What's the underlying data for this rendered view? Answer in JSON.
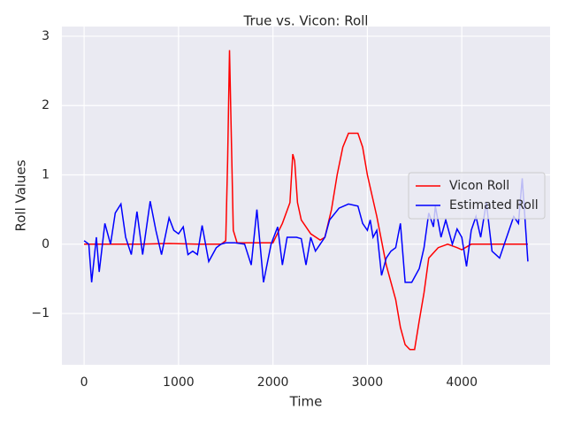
{
  "chart_data": {
    "type": "line",
    "title": "True vs. Vicon: Roll",
    "xlabel": "Time",
    "ylabel": "Roll Values",
    "xlim": [
      -235,
      4935
    ],
    "ylim": [
      -1.74,
      3.14
    ],
    "xticks": [
      0,
      1000,
      2000,
      3000,
      4000
    ],
    "yticks": [
      {
        "value": -1,
        "label": "−1"
      },
      0,
      1,
      2,
      3
    ],
    "grid": true,
    "legend": "center right",
    "series": [
      {
        "name": "Vicon Roll",
        "color": "#ff0000",
        "x": [
          0,
          300,
          600,
          900,
          1200,
          1450,
          1500,
          1520,
          1540,
          1560,
          1580,
          1620,
          1800,
          2000,
          2100,
          2180,
          2210,
          2230,
          2260,
          2300,
          2400,
          2500,
          2550,
          2620,
          2680,
          2740,
          2800,
          2900,
          2950,
          3000,
          3100,
          3200,
          3300,
          3350,
          3400,
          3450,
          3500,
          3550,
          3600,
          3650,
          3750,
          3850,
          3950,
          4000,
          4100,
          4400,
          4700
        ],
        "values": [
          0.0,
          0.0,
          0.0,
          0.01,
          0.0,
          0.0,
          0.05,
          1.2,
          2.8,
          1.5,
          0.2,
          0.02,
          0.02,
          0.02,
          0.3,
          0.6,
          1.3,
          1.2,
          0.6,
          0.35,
          0.15,
          0.06,
          0.1,
          0.5,
          1.0,
          1.4,
          1.6,
          1.6,
          1.4,
          1.0,
          0.4,
          -0.3,
          -0.8,
          -1.2,
          -1.45,
          -1.52,
          -1.52,
          -1.1,
          -0.7,
          -0.2,
          -0.05,
          0.0,
          -0.05,
          -0.08,
          0.0,
          0.0,
          0.0
        ]
      },
      {
        "name": "Estimated Roll",
        "color": "#0000ff",
        "x": [
          0,
          50,
          80,
          130,
          160,
          220,
          280,
          330,
          390,
          440,
          500,
          560,
          620,
          700,
          760,
          820,
          900,
          950,
          1000,
          1050,
          1100,
          1150,
          1200,
          1250,
          1320,
          1400,
          1450,
          1500,
          1600,
          1700,
          1770,
          1830,
          1900,
          1980,
          2050,
          2100,
          2150,
          2250,
          2300,
          2350,
          2400,
          2450,
          2500,
          2550,
          2600,
          2700,
          2800,
          2900,
          2950,
          3000,
          3030,
          3060,
          3100,
          3150,
          3200,
          3250,
          3300,
          3350,
          3400,
          3470,
          3550,
          3600,
          3650,
          3700,
          3720,
          3780,
          3830,
          3900,
          3950,
          4000,
          4050,
          4100,
          4150,
          4200,
          4260,
          4320,
          4400,
          4450,
          4550,
          4600,
          4640,
          4700
        ],
        "values": [
          0.05,
          0.0,
          -0.55,
          0.1,
          -0.4,
          0.3,
          0.0,
          0.45,
          0.58,
          0.1,
          -0.15,
          0.47,
          -0.15,
          0.62,
          0.2,
          -0.15,
          0.38,
          0.2,
          0.15,
          0.25,
          -0.15,
          -0.1,
          -0.15,
          0.27,
          -0.25,
          -0.05,
          0.0,
          0.02,
          0.02,
          0.0,
          -0.3,
          0.5,
          -0.55,
          0.0,
          0.25,
          -0.3,
          0.1,
          0.1,
          0.08,
          -0.3,
          0.1,
          -0.1,
          0.0,
          0.1,
          0.35,
          0.52,
          0.58,
          0.55,
          0.3,
          0.2,
          0.35,
          0.1,
          0.2,
          -0.45,
          -0.2,
          -0.1,
          -0.05,
          0.3,
          -0.55,
          -0.55,
          -0.35,
          -0.05,
          0.45,
          0.25,
          0.55,
          0.1,
          0.35,
          0.0,
          0.22,
          0.1,
          -0.32,
          0.2,
          0.4,
          0.1,
          0.6,
          -0.1,
          -0.2,
          0.0,
          0.4,
          0.3,
          0.95,
          -0.25
        ]
      }
    ]
  }
}
